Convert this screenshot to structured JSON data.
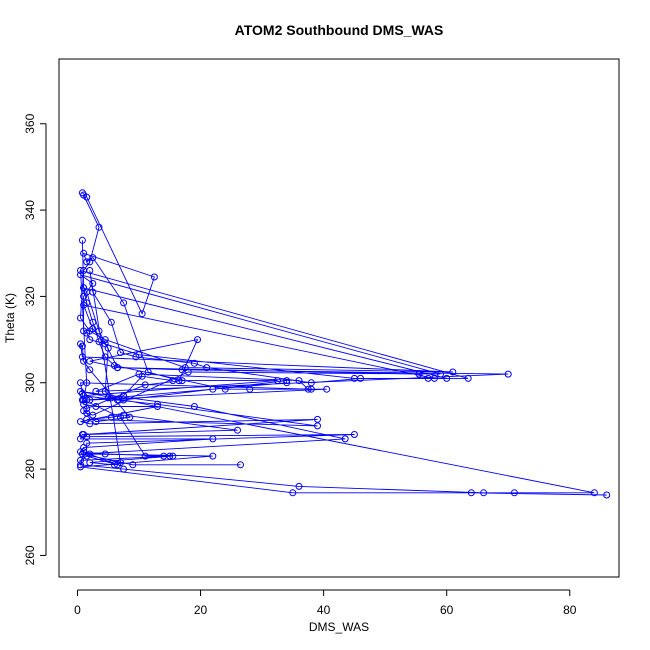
{
  "chart_data": {
    "type": "line",
    "title": "ATOM2 Southbound DMS_WAS",
    "xlabel": "DMS_WAS",
    "ylabel": "Theta (K)",
    "xlim": [
      -3,
      88
    ],
    "ylim": [
      255,
      375
    ],
    "xticks": [
      0,
      20,
      40,
      60,
      80
    ],
    "yticks": [
      260,
      280,
      300,
      320,
      340,
      360
    ],
    "marker": "open-circle",
    "color": "#0000ff",
    "grid": false,
    "legend": "none",
    "series": [
      {
        "points": [
          [
            1.0,
            343.5
          ],
          [
            3.5,
            336.0
          ],
          [
            2.0,
            328.0
          ],
          [
            1.0,
            326.0
          ],
          [
            0.5,
            315.0
          ],
          [
            2.0,
            312.0
          ],
          [
            4.5,
            310.0
          ],
          [
            17.5,
            303.5
          ],
          [
            61.0,
            302.5
          ],
          [
            0.8,
            306.0
          ],
          [
            0.5,
            309.0
          ],
          [
            0.8,
            308.5
          ],
          [
            1.0,
            305.0
          ],
          [
            2.0,
            303.0
          ],
          [
            8.5,
            292.0
          ],
          [
            3.0,
            291.0
          ],
          [
            1.0,
            293.5
          ],
          [
            1.5,
            293.0
          ],
          [
            2.5,
            292.5
          ],
          [
            18.0,
            302.5
          ],
          [
            59.0,
            302.0
          ],
          [
            0.5,
            325.0
          ],
          [
            2.5,
            323.0
          ],
          [
            1.0,
            320.0
          ],
          [
            1.0,
            312.0
          ],
          [
            1.5,
            311.5
          ],
          [
            2.0,
            310.0
          ],
          [
            4.5,
            309.0
          ],
          [
            10.0,
            306.5
          ],
          [
            45.0,
            301.0
          ],
          [
            60.0,
            301.0
          ],
          [
            1.0,
            322.0
          ],
          [
            1.5,
            318.5
          ],
          [
            2.5,
            314.0
          ],
          [
            3.5,
            309.5
          ],
          [
            4.5,
            306.0
          ],
          [
            6.0,
            304.0
          ],
          [
            24.0,
            298.5
          ],
          [
            28.0,
            298.5
          ],
          [
            38.0,
            298.5
          ],
          [
            0.5,
            300.0
          ],
          [
            0.8,
            297.5
          ],
          [
            0.8,
            296.0
          ],
          [
            1.0,
            295.0
          ],
          [
            3.0,
            294.5
          ],
          [
            13.0,
            294.5
          ],
          [
            0.5,
            291.0
          ],
          [
            2.0,
            290.5
          ],
          [
            39.0,
            291.5
          ],
          [
            0.8,
            288.0
          ],
          [
            0.5,
            287.0
          ],
          [
            22.0,
            287.0
          ],
          [
            1.0,
            285.0
          ],
          [
            0.5,
            284.0
          ],
          [
            4.5,
            283.5
          ],
          [
            15.0,
            283.0
          ],
          [
            0.5,
            282.0
          ],
          [
            2.0,
            283.5
          ],
          [
            22.0,
            283.0
          ],
          [
            0.5,
            280.5
          ],
          [
            35.0,
            274.5
          ],
          [
            64.0,
            274.5
          ],
          [
            86.0,
            274.0
          ]
        ]
      },
      {
        "points": [
          [
            0.8,
            344.0
          ],
          [
            1.5,
            343.0
          ],
          [
            10.5,
            316.0
          ],
          [
            12.5,
            324.5
          ],
          [
            1.0,
            330.0
          ],
          [
            1.5,
            328.0
          ],
          [
            2.5,
            329.0
          ],
          [
            7.5,
            318.5
          ],
          [
            11.5,
            302.5
          ],
          [
            16.5,
            300.5
          ],
          [
            19.5,
            310.0
          ],
          [
            2.0,
            305.0
          ],
          [
            6.5,
            303.5
          ],
          [
            17.0,
            303.0
          ],
          [
            70.0,
            302.0
          ],
          [
            3.0,
            298.0
          ],
          [
            10.0,
            302.0
          ],
          [
            36.0,
            300.5
          ],
          [
            37.5,
            298.5
          ],
          [
            40.5,
            298.5
          ],
          [
            2.0,
            296.0
          ],
          [
            5.0,
            296.5
          ],
          [
            7.5,
            296.0
          ],
          [
            22.0,
            298.5
          ],
          [
            34.0,
            300.5
          ],
          [
            34.0,
            300.0
          ],
          [
            1.5,
            296.0
          ],
          [
            1.5,
            294.0
          ],
          [
            11.0,
            299.5
          ],
          [
            17.0,
            300.5
          ],
          [
            32.5,
            300.5
          ],
          [
            1.0,
            297.0
          ],
          [
            6.5,
            296.0
          ],
          [
            13.0,
            295.0
          ],
          [
            39.0,
            290.0
          ],
          [
            1.5,
            291.5
          ],
          [
            5.5,
            292.0
          ],
          [
            7.5,
            292.5
          ],
          [
            26.0,
            289.0
          ],
          [
            1.0,
            288.0
          ],
          [
            1.5,
            287.5
          ],
          [
            45.0,
            288.0
          ],
          [
            1.5,
            286.0
          ],
          [
            1.5,
            283.0
          ],
          [
            6.5,
            281.0
          ],
          [
            1.0,
            284.0
          ],
          [
            0.5,
            281.0
          ],
          [
            7.5,
            280.0
          ],
          [
            36.0,
            276.0
          ],
          [
            66.0,
            274.5
          ],
          [
            71.0,
            274.5
          ],
          [
            84.0,
            274.5
          ],
          [
            0.5,
            298.0
          ],
          [
            19.0,
            294.5
          ],
          [
            43.5,
            287.0
          ],
          [
            0.8,
            283.5
          ],
          [
            9.0,
            281.0
          ],
          [
            26.5,
            281.0
          ]
        ]
      },
      {
        "points": [
          [
            0.8,
            333.0
          ],
          [
            1.0,
            322.0
          ],
          [
            1.5,
            321.0
          ],
          [
            3.5,
            312.0
          ],
          [
            6.5,
            303.5
          ],
          [
            55.5,
            302.0
          ],
          [
            57.0,
            301.0
          ],
          [
            63.5,
            301.0
          ],
          [
            0.5,
            326.0
          ],
          [
            1.5,
            300.0
          ],
          [
            1.0,
            296.0
          ],
          [
            7.0,
            292.0
          ],
          [
            11.0,
            283.0
          ],
          [
            14.0,
            283.0
          ],
          [
            15.5,
            283.0
          ],
          [
            2.0,
            281.5
          ],
          [
            6.0,
            281.0
          ],
          [
            7.0,
            281.5
          ],
          [
            2.0,
            326.0
          ],
          [
            2.5,
            321.0
          ],
          [
            5.5,
            314.0
          ],
          [
            7.0,
            307.0
          ],
          [
            9.5,
            306.0
          ],
          [
            19.0,
            304.5
          ],
          [
            21.0,
            303.5
          ],
          [
            38.0,
            300.0
          ],
          [
            46.0,
            301.0
          ],
          [
            58.0,
            301.0
          ],
          [
            1.0,
            318.0
          ],
          [
            2.5,
            312.5
          ],
          [
            5.0,
            308.0
          ],
          [
            4.5,
            298.0
          ],
          [
            5.5,
            296.5
          ],
          [
            7.5,
            297.0
          ],
          [
            10.5,
            301.5
          ],
          [
            15.5,
            300.5
          ]
        ]
      }
    ]
  }
}
